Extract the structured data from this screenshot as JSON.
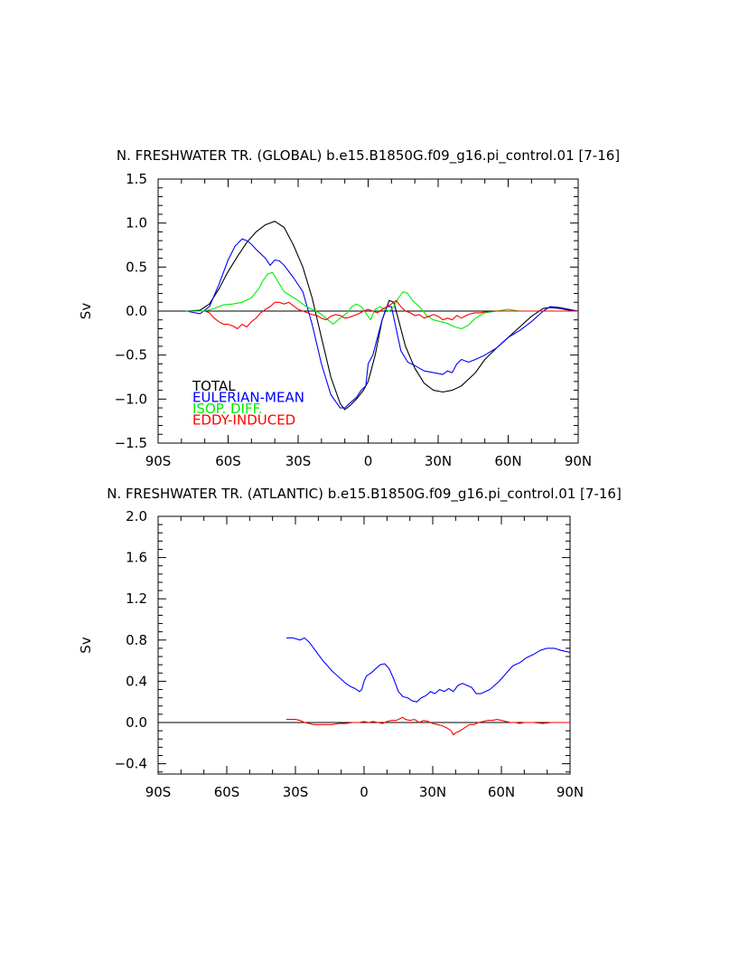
{
  "chart_data": [
    {
      "type": "line",
      "title": "N. FRESHWATER TR. (GLOBAL) b.e15.B1850G.f09_g16.pi_control.01 [7-16]",
      "ylabel": "Sv",
      "xlabel": "",
      "xlim": [
        -90,
        90
      ],
      "ylim": [
        -1.5,
        1.5
      ],
      "x_ticks": [
        -90,
        -60,
        -30,
        0,
        30,
        60,
        90
      ],
      "x_tick_labels": [
        "90S",
        "60S",
        "30S",
        "0",
        "30N",
        "60N",
        "90N"
      ],
      "y_ticks": [
        -1.5,
        -1.0,
        -0.5,
        0.0,
        0.5,
        1.0,
        1.5
      ],
      "y_tick_labels": [
        "−1.5",
        "−1.0",
        "−0.5",
        "0.0",
        "0.5",
        "1.0",
        "1.5"
      ],
      "zero_line": true,
      "grid": false,
      "legend_position": "bottom-left",
      "series": [
        {
          "name": "TOTAL",
          "color": "#000000",
          "x": [
            -78,
            -72,
            -68,
            -64,
            -60,
            -56,
            -52,
            -48,
            -44,
            -40,
            -36,
            -32,
            -28,
            -24,
            -20,
            -16,
            -12,
            -10,
            -8,
            -5,
            -2,
            0,
            3,
            6,
            9,
            11,
            13,
            16,
            20,
            24,
            28,
            32,
            36,
            40,
            46,
            50,
            55,
            60,
            65,
            70,
            75,
            78,
            82,
            86,
            90
          ],
          "y": [
            0.0,
            0.01,
            0.08,
            0.25,
            0.45,
            0.62,
            0.78,
            0.9,
            0.98,
            1.02,
            0.95,
            0.75,
            0.5,
            0.15,
            -0.3,
            -0.75,
            -1.05,
            -1.12,
            -1.08,
            -1.0,
            -0.9,
            -0.8,
            -0.5,
            -0.1,
            0.12,
            0.1,
            -0.1,
            -0.4,
            -0.65,
            -0.82,
            -0.9,
            -0.92,
            -0.9,
            -0.85,
            -0.7,
            -0.55,
            -0.42,
            -0.3,
            -0.18,
            -0.06,
            0.03,
            0.04,
            0.03,
            0.01,
            0.0
          ]
        },
        {
          "name": "EULERIAN-MEAN",
          "color": "#0000ff",
          "x": [
            -78,
            -72,
            -68,
            -64,
            -60,
            -57,
            -54,
            -52,
            -50,
            -48,
            -46,
            -44,
            -42,
            -40,
            -38,
            -36,
            -32,
            -28,
            -24,
            -20,
            -16,
            -12,
            -10,
            -8,
            -5,
            -3,
            -1,
            0,
            2,
            4,
            6,
            8,
            10,
            12,
            14,
            17,
            20,
            24,
            28,
            32,
            34,
            36,
            38,
            40,
            43,
            46,
            50,
            55,
            60,
            65,
            70,
            75,
            78,
            82,
            86,
            90
          ],
          "y": [
            0.0,
            -0.03,
            0.05,
            0.3,
            0.58,
            0.74,
            0.82,
            0.8,
            0.76,
            0.7,
            0.65,
            0.6,
            0.52,
            0.58,
            0.57,
            0.52,
            0.38,
            0.22,
            -0.15,
            -0.6,
            -0.95,
            -1.1,
            -1.1,
            -1.05,
            -0.98,
            -0.9,
            -0.85,
            -0.6,
            -0.5,
            -0.3,
            -0.1,
            0.05,
            0.05,
            -0.2,
            -0.45,
            -0.58,
            -0.62,
            -0.68,
            -0.7,
            -0.72,
            -0.68,
            -0.7,
            -0.6,
            -0.55,
            -0.58,
            -0.55,
            -0.5,
            -0.42,
            -0.3,
            -0.22,
            -0.12,
            0.0,
            0.05,
            0.04,
            0.02,
            0.0
          ]
        },
        {
          "name": "ISOP. DIFF.",
          "color": "#00ee00",
          "x": [
            -78,
            -70,
            -66,
            -62,
            -58,
            -54,
            -50,
            -47,
            -45,
            -43,
            -41,
            -39,
            -36,
            -33,
            -30,
            -27,
            -24,
            -21,
            -18,
            -15,
            -12,
            -9,
            -7,
            -5,
            -3,
            -1,
            1,
            3,
            5,
            7,
            9,
            11,
            13,
            15,
            17,
            19,
            22,
            25,
            28,
            31,
            34,
            37,
            40,
            43,
            46,
            50,
            55,
            60,
            65,
            70,
            75,
            80,
            85,
            90
          ],
          "y": [
            0.0,
            0.0,
            0.03,
            0.07,
            0.08,
            0.1,
            0.15,
            0.25,
            0.35,
            0.42,
            0.44,
            0.35,
            0.22,
            0.17,
            0.12,
            0.06,
            0.02,
            -0.02,
            -0.08,
            -0.15,
            -0.08,
            -0.02,
            0.05,
            0.08,
            0.05,
            -0.02,
            -0.1,
            0.02,
            0.05,
            0.02,
            0.0,
            0.05,
            0.15,
            0.22,
            0.2,
            0.12,
            0.05,
            -0.05,
            -0.1,
            -0.12,
            -0.14,
            -0.18,
            -0.2,
            -0.16,
            -0.08,
            -0.02,
            0.0,
            0.02,
            0.0,
            0.0,
            0.0,
            0.0,
            0.0,
            0.0
          ]
        },
        {
          "name": "EDDY-INDUCED",
          "color": "#ff0000",
          "x": [
            -70,
            -68,
            -66,
            -64,
            -62,
            -60,
            -58,
            -56,
            -54,
            -52,
            -50,
            -48,
            -46,
            -44,
            -42,
            -40,
            -38,
            -36,
            -34,
            -32,
            -30,
            -28,
            -26,
            -24,
            -22,
            -20,
            -18,
            -16,
            -14,
            -12,
            -10,
            -8,
            -6,
            -4,
            -2,
            0,
            2,
            4,
            6,
            8,
            10,
            12,
            14,
            16,
            18,
            20,
            22,
            24,
            26,
            28,
            30,
            32,
            34,
            36,
            38,
            40,
            42,
            44,
            46,
            48,
            50,
            55,
            60,
            65,
            70,
            75,
            80,
            85,
            90
          ],
          "y": [
            0.0,
            -0.02,
            -0.08,
            -0.12,
            -0.15,
            -0.15,
            -0.17,
            -0.2,
            -0.15,
            -0.18,
            -0.12,
            -0.08,
            -0.02,
            0.02,
            0.05,
            0.1,
            0.1,
            0.08,
            0.1,
            0.06,
            0.02,
            0.0,
            -0.02,
            -0.04,
            -0.05,
            -0.08,
            -0.1,
            -0.06,
            -0.04,
            -0.05,
            -0.08,
            -0.07,
            -0.05,
            -0.03,
            0.0,
            0.02,
            0.0,
            -0.02,
            0.02,
            0.05,
            0.08,
            0.12,
            0.05,
            0.0,
            -0.02,
            -0.05,
            -0.04,
            -0.08,
            -0.06,
            -0.04,
            -0.06,
            -0.1,
            -0.08,
            -0.1,
            -0.05,
            -0.08,
            -0.05,
            -0.03,
            -0.02,
            -0.02,
            -0.01,
            0.0,
            0.0,
            0.0,
            0.0,
            0.0,
            0.0,
            0.0,
            0.0
          ]
        }
      ]
    },
    {
      "type": "line",
      "title": "N. FRESHWATER TR. (ATLANTIC) b.e15.B1850G.f09_g16.pi_control.01 [7-16]",
      "ylabel": "Sv",
      "xlabel": "",
      "xlim": [
        -90,
        90
      ],
      "ylim": [
        -0.5,
        2.0
      ],
      "x_ticks": [
        -90,
        -60,
        -30,
        0,
        30,
        60,
        90
      ],
      "x_tick_labels": [
        "90S",
        "60S",
        "30S",
        "0",
        "30N",
        "60N",
        "90N"
      ],
      "y_ticks": [
        -0.4,
        0.0,
        0.4,
        0.8,
        1.2,
        1.6,
        2.0
      ],
      "y_tick_labels": [
        "−0.4",
        "0.0",
        "0.4",
        "0.8",
        "1.2",
        "1.6",
        "2.0"
      ],
      "zero_line": true,
      "grid": false,
      "series": [
        {
          "name": "",
          "color": "#0000ff",
          "x": [
            -34,
            -31,
            -28,
            -26,
            -24,
            -22,
            -20,
            -18,
            -16,
            -14,
            -12,
            -10,
            -8,
            -6,
            -4,
            -2,
            -1,
            0,
            1,
            3,
            5,
            7,
            9,
            11,
            13,
            15,
            17,
            19,
            21,
            23,
            25,
            27,
            29,
            31,
            33,
            35,
            37,
            39,
            41,
            43,
            45,
            47,
            49,
            51,
            53,
            55,
            57,
            59,
            61,
            63,
            65,
            68,
            71,
            74,
            77,
            80,
            83,
            86,
            90
          ],
          "y": [
            0.82,
            0.82,
            0.8,
            0.82,
            0.78,
            0.72,
            0.66,
            0.6,
            0.55,
            0.5,
            0.46,
            0.42,
            0.38,
            0.35,
            0.33,
            0.3,
            0.32,
            0.4,
            0.45,
            0.48,
            0.52,
            0.56,
            0.57,
            0.52,
            0.42,
            0.3,
            0.25,
            0.24,
            0.21,
            0.2,
            0.24,
            0.26,
            0.3,
            0.28,
            0.32,
            0.3,
            0.33,
            0.3,
            0.36,
            0.38,
            0.36,
            0.34,
            0.28,
            0.28,
            0.3,
            0.32,
            0.36,
            0.4,
            0.45,
            0.5,
            0.55,
            0.58,
            0.63,
            0.66,
            0.7,
            0.72,
            0.72,
            0.7,
            0.68
          ]
        },
        {
          "name": "",
          "color": "#ff0000",
          "x": [
            -34,
            -30,
            -28,
            -26,
            -24,
            -22,
            -20,
            -17,
            -14,
            -11,
            -8,
            -5,
            -2,
            0,
            2,
            4,
            6,
            8,
            10,
            12,
            14,
            16,
            17,
            18,
            20,
            22,
            24,
            26,
            28,
            30,
            32,
            34,
            36,
            38,
            39,
            40,
            42,
            44,
            46,
            48,
            50,
            52,
            54,
            56,
            58,
            60,
            62,
            64,
            66,
            68,
            70,
            74,
            78,
            82,
            86,
            90
          ],
          "y": [
            0.03,
            0.03,
            0.02,
            0.0,
            -0.01,
            -0.02,
            -0.02,
            -0.02,
            -0.02,
            -0.01,
            -0.01,
            0.0,
            0.0,
            0.01,
            0.0,
            0.01,
            0.0,
            -0.01,
            0.01,
            0.02,
            0.02,
            0.04,
            0.05,
            0.03,
            0.02,
            0.03,
            0.0,
            0.02,
            0.01,
            -0.01,
            -0.02,
            -0.03,
            -0.05,
            -0.08,
            -0.12,
            -0.1,
            -0.08,
            -0.05,
            -0.02,
            -0.02,
            0.0,
            0.01,
            0.02,
            0.02,
            0.03,
            0.02,
            0.01,
            0.0,
            0.0,
            -0.01,
            0.0,
            0.0,
            -0.01,
            0.0,
            0.0,
            0.0
          ]
        }
      ]
    }
  ]
}
